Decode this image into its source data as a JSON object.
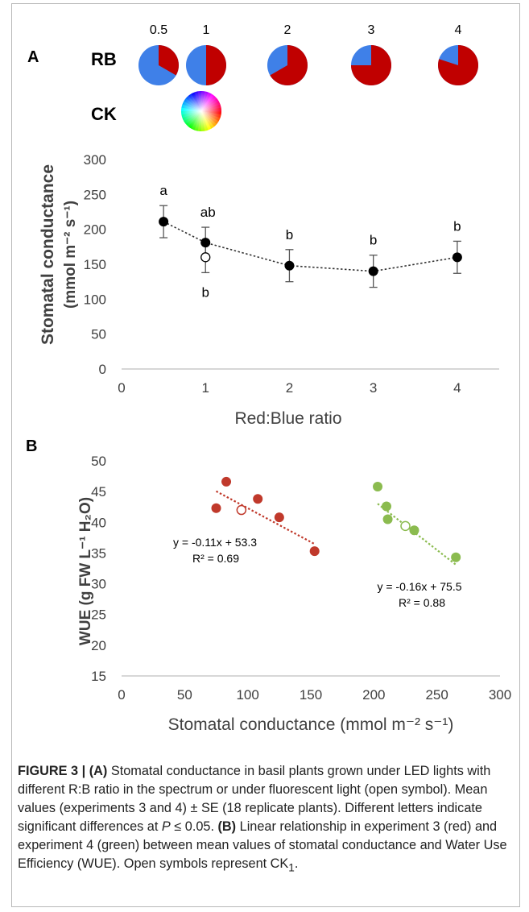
{
  "chart_data": [
    {
      "panel": "A",
      "type": "scatter",
      "xlabel": "Red:Blue ratio",
      "ylabel_line1": "Stomatal conductance",
      "ylabel_line2": "(mmol m⁻² s⁻¹)",
      "xlim": [
        0,
        4.5
      ],
      "ylim": [
        0,
        300
      ],
      "xticks": [
        0,
        1,
        2,
        3,
        4
      ],
      "yticks": [
        0,
        50,
        100,
        150,
        200,
        250,
        300
      ],
      "grid": false,
      "series": [
        {
          "marker": "filled",
          "color": "#000000",
          "x": [
            0.5,
            1,
            2,
            3,
            4
          ],
          "y": [
            211,
            181,
            148,
            140,
            160
          ],
          "se": [
            23,
            22,
            23,
            23,
            23
          ],
          "letters": [
            "a",
            "ab",
            "b",
            "b",
            "b"
          ]
        },
        {
          "marker": "open",
          "color": "#000000",
          "x": [
            1
          ],
          "y": [
            160
          ],
          "se": [
            22
          ],
          "letters": [
            "b"
          ]
        }
      ],
      "pies": {
        "rb_label": "RB",
        "ck_label": "CK",
        "red_color": "#c00000",
        "blue_color": "#3f80e8",
        "items": [
          {
            "label": "0.5",
            "ratio": 0.5
          },
          {
            "label": "1",
            "ratio": 1
          },
          {
            "label": "2",
            "ratio": 2
          },
          {
            "label": "3",
            "ratio": 3
          },
          {
            "label": "4",
            "ratio": 4
          }
        ]
      }
    },
    {
      "panel": "B",
      "type": "scatter",
      "xlabel": "Stomatal conductance (mmol m⁻² s⁻¹)",
      "ylabel": "WUE (g FW L⁻¹ H₂O)",
      "xlim": [
        0,
        300
      ],
      "ylim": [
        15,
        50
      ],
      "xticks": [
        0,
        50,
        100,
        150,
        200,
        250,
        300
      ],
      "yticks": [
        15,
        20,
        25,
        30,
        35,
        40,
        45,
        50
      ],
      "grid": false,
      "series": [
        {
          "color": "#c0392b",
          "x": [
            75,
            83,
            108,
            125,
            153
          ],
          "y": [
            42.3,
            46.6,
            43.8,
            40.8,
            35.3
          ],
          "open_point": {
            "x": 95,
            "y": 42
          },
          "trend": {
            "slope": -0.11,
            "intercept": 53.3,
            "x_range": [
              75,
              153
            ]
          },
          "equation": "y = -0.11x + 53.3",
          "r2": "R² = 0.69"
        },
        {
          "color": "#8bbb4f",
          "x": [
            203,
            210,
            211,
            232,
            265
          ],
          "y": [
            45.8,
            42.6,
            40.5,
            38.7,
            34.3
          ],
          "open_point": {
            "x": 225,
            "y": 39.4
          },
          "trend": {
            "slope": -0.16,
            "intercept": 75.5,
            "x_range": [
              203,
              265
            ]
          },
          "equation": "y = -0.16x + 75.5",
          "r2": "R² = 0.88"
        }
      ]
    }
  ],
  "caption": {
    "fig_label": "FIGURE 3 | ",
    "a_tag": "(A)",
    "a_text": " Stomatal conductance in basil plants grown under LED lights with different R:B ratio in the spectrum or under fluorescent light (open symbol). Mean values (experiments 3 and 4) ± SE (18 replicate plants). Different letters indicate significant differences at ",
    "p_var": "P",
    "p_text": " ≤ 0.05. ",
    "b_tag": "(B)",
    "b_text": " Linear relationship in experiment 3 (red) and experiment 4 (green) between mean values of stomatal conductance and Water Use Efficiency (WUE). Open symbols represent CK",
    "b_sub": "1",
    "b_end": "."
  }
}
